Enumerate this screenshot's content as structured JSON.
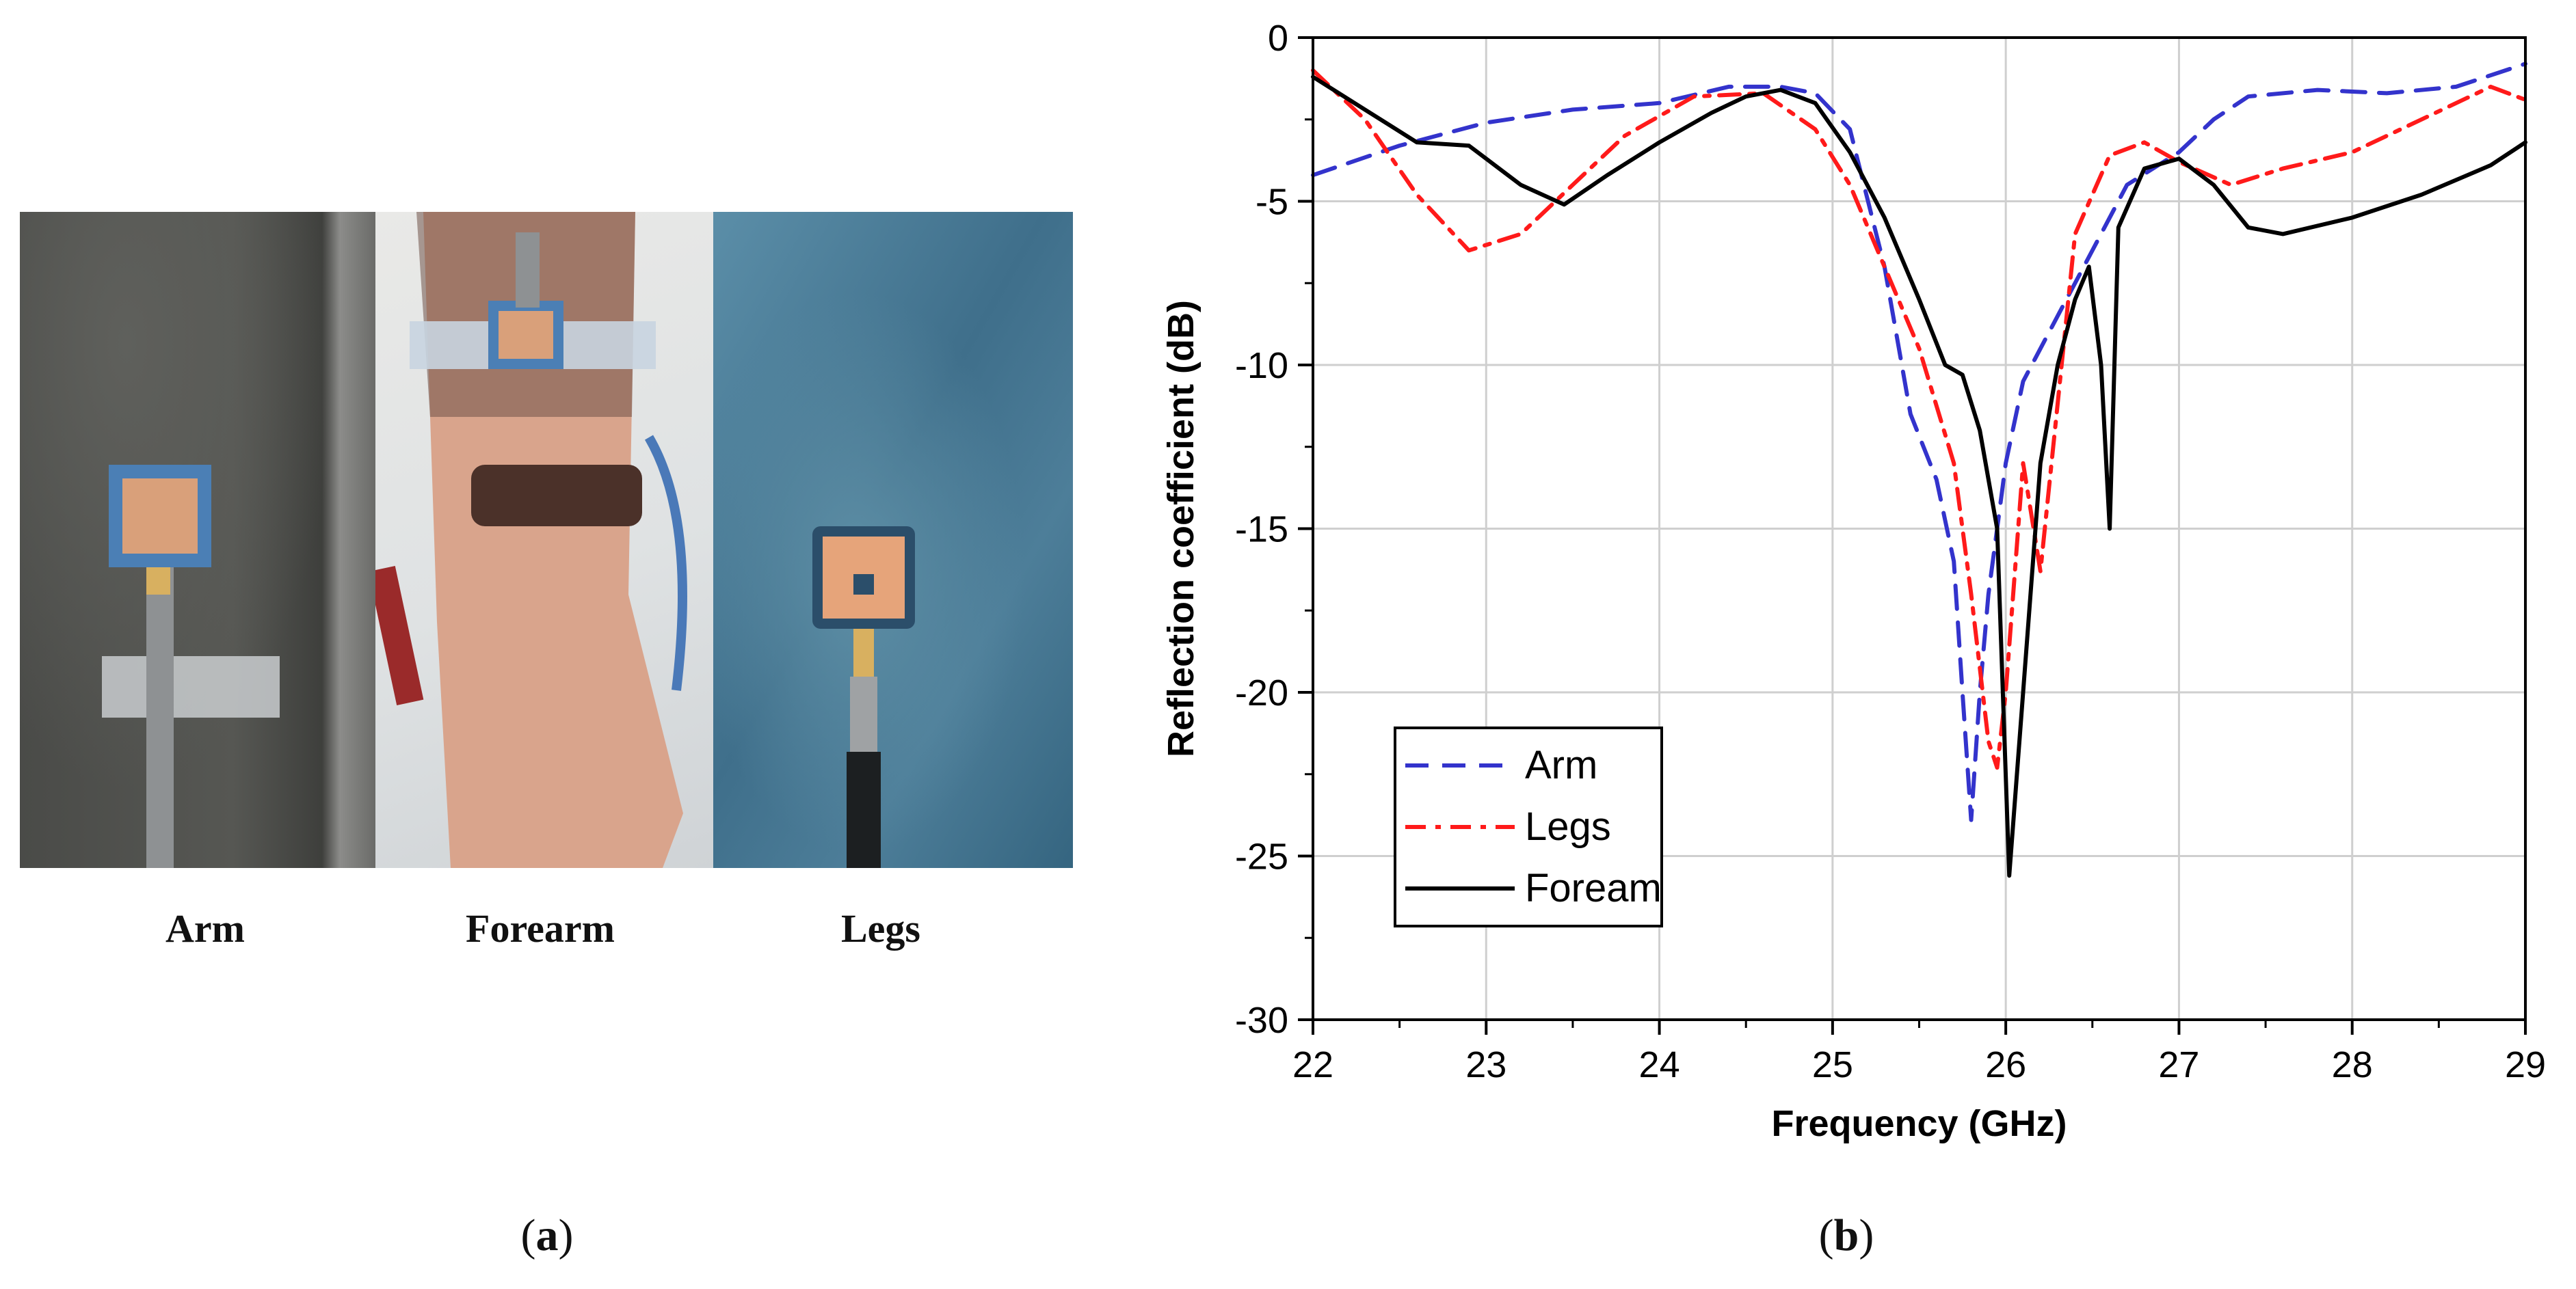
{
  "figure": {
    "panel_a_label": "a",
    "panel_b_label": "b",
    "photo_captions": [
      "Arm",
      "Forearm",
      "Legs"
    ]
  },
  "colors": {
    "arm": "#3333cc",
    "legs": "#ff1a1a",
    "forearm": "#000000",
    "grid": "#cfcfcf",
    "axis": "#000000"
  },
  "chart_data": {
    "type": "line",
    "title": "",
    "xlabel": "Frequency (GHz)",
    "ylabel": "Reflection coefficient (dB)",
    "xlim": [
      22,
      29
    ],
    "ylim": [
      -30,
      0
    ],
    "xticks": [
      22,
      23,
      24,
      25,
      26,
      27,
      28,
      29
    ],
    "yticks": [
      0,
      -5,
      -10,
      -15,
      -20,
      -25,
      -30
    ],
    "grid": true,
    "legend_position": "lower-left",
    "series": [
      {
        "name": "Arm",
        "style": "dashed",
        "x": [
          22.0,
          22.5,
          23.0,
          23.5,
          24.0,
          24.4,
          24.7,
          24.9,
          25.1,
          25.3,
          25.45,
          25.6,
          25.7,
          25.75,
          25.8,
          25.85,
          25.9,
          25.95,
          26.0,
          26.1,
          26.3,
          26.5,
          26.7,
          27.0,
          27.2,
          27.4,
          27.8,
          28.2,
          28.6,
          29.0
        ],
        "y": [
          -4.2,
          -3.3,
          -2.6,
          -2.2,
          -2.0,
          -1.5,
          -1.5,
          -1.7,
          -2.8,
          -7.0,
          -11.5,
          -13.5,
          -16.0,
          -20.0,
          -23.9,
          -20.0,
          -17.0,
          -15.0,
          -13.0,
          -10.5,
          -8.5,
          -6.5,
          -4.5,
          -3.5,
          -2.5,
          -1.8,
          -1.6,
          -1.7,
          -1.5,
          -0.8
        ]
      },
      {
        "name": "Legs",
        "style": "dash-dot",
        "x": [
          22.0,
          22.3,
          22.6,
          22.9,
          23.2,
          23.5,
          23.8,
          24.2,
          24.6,
          24.9,
          25.1,
          25.3,
          25.5,
          25.7,
          25.8,
          25.9,
          25.95,
          26.0,
          26.1,
          26.2,
          26.4,
          26.6,
          26.8,
          27.0,
          27.3,
          27.6,
          28.0,
          28.4,
          28.8,
          29.0
        ],
        "y": [
          -1.0,
          -2.5,
          -4.8,
          -6.5,
          -6.0,
          -4.5,
          -3.0,
          -1.8,
          -1.7,
          -2.8,
          -4.5,
          -7.0,
          -9.5,
          -13.0,
          -17.0,
          -21.5,
          -22.3,
          -20.0,
          -13.0,
          -16.3,
          -6.0,
          -3.6,
          -3.2,
          -3.8,
          -4.5,
          -4.0,
          -3.5,
          -2.5,
          -1.5,
          -1.9
        ]
      },
      {
        "name": "Foream",
        "style": "solid",
        "x": [
          22.0,
          22.3,
          22.6,
          22.9,
          23.2,
          23.45,
          23.7,
          24.0,
          24.3,
          24.5,
          24.7,
          24.9,
          25.1,
          25.3,
          25.5,
          25.65,
          25.75,
          25.85,
          25.95,
          26.02,
          26.1,
          26.2,
          26.3,
          26.4,
          26.48,
          26.55,
          26.6,
          26.65,
          26.8,
          27.0,
          27.2,
          27.4,
          27.6,
          28.0,
          28.4,
          28.8,
          29.0
        ],
        "y": [
          -1.2,
          -2.2,
          -3.2,
          -3.3,
          -4.5,
          -5.1,
          -4.2,
          -3.2,
          -2.3,
          -1.8,
          -1.6,
          -2.0,
          -3.5,
          -5.5,
          -8.0,
          -10.0,
          -10.3,
          -12.0,
          -15.0,
          -25.6,
          -20.0,
          -13.0,
          -10.0,
          -8.0,
          -7.0,
          -10.0,
          -15.0,
          -5.8,
          -4.0,
          -3.7,
          -4.5,
          -5.8,
          -6.0,
          -5.5,
          -4.8,
          -3.9,
          -3.2
        ]
      }
    ]
  }
}
